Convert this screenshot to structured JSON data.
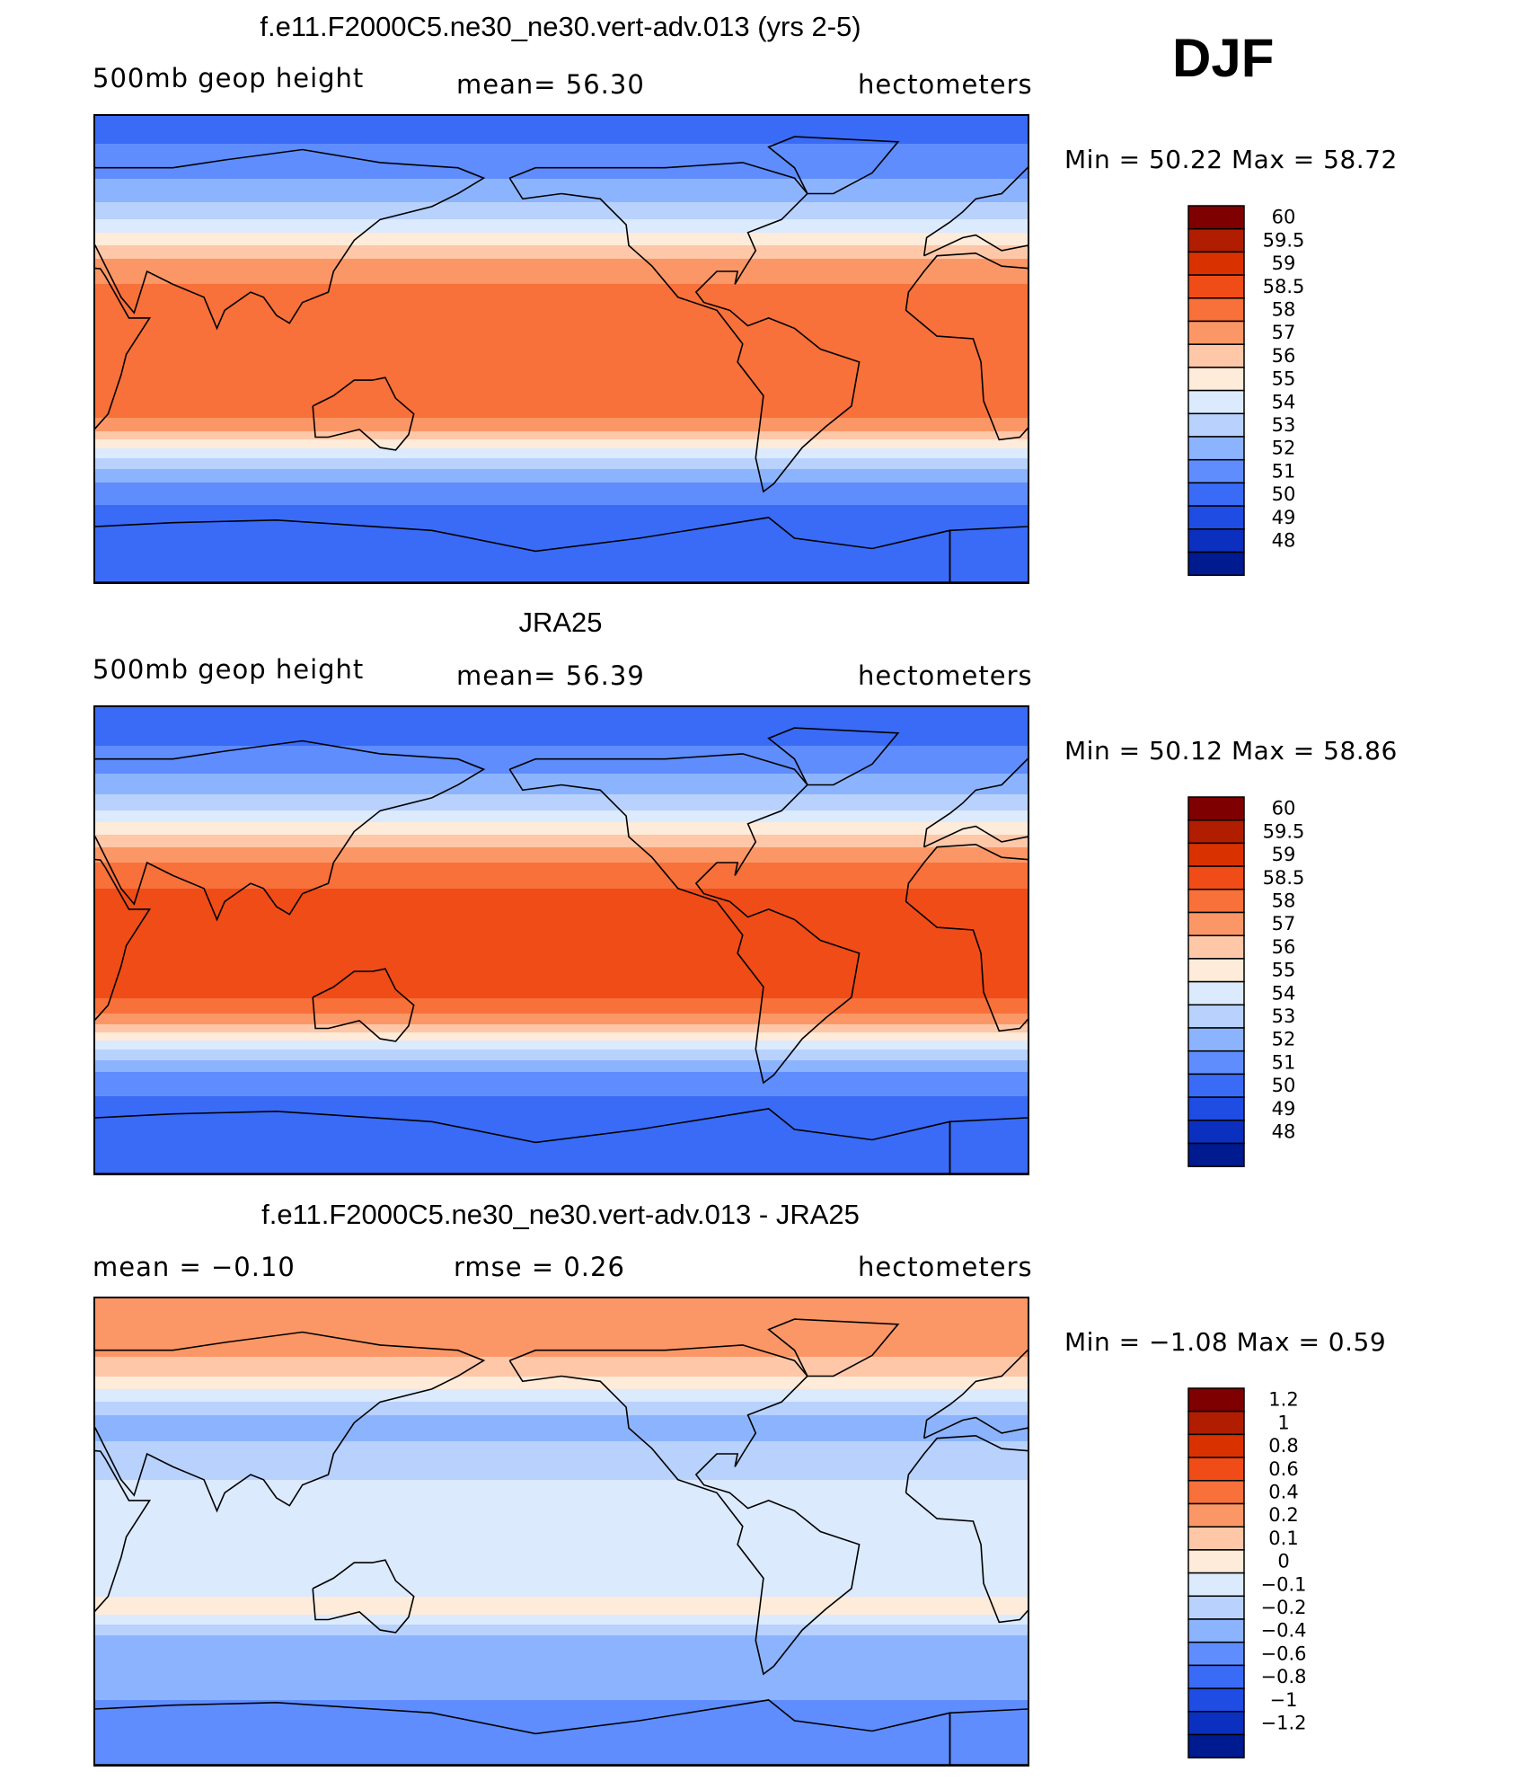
{
  "season": "DJF",
  "panels": [
    {
      "id": "model",
      "title": "f.e11.F2000C5.ne30_ne30.vert-adv.013 (yrs 2-5)",
      "left_label": "500mb geop height",
      "center_label": "mean=   56.30",
      "right_label": "hectometers",
      "minmax": "Min =    50.22  Max =    58.72",
      "colorbar_labels": [
        "60",
        "59.5",
        "59",
        "58.5",
        "58",
        "57",
        "56",
        "55",
        "54",
        "53",
        "52",
        "51",
        "50",
        "49",
        "48"
      ]
    },
    {
      "id": "obs",
      "title": "JRA25",
      "left_label": "500mb geop height",
      "center_label": "mean=   56.39",
      "right_label": "hectometers",
      "minmax": "Min =    50.12  Max =    58.86",
      "colorbar_labels": [
        "60",
        "59.5",
        "59",
        "58.5",
        "58",
        "57",
        "56",
        "55",
        "54",
        "53",
        "52",
        "51",
        "50",
        "49",
        "48"
      ]
    },
    {
      "id": "diff",
      "title": "f.e11.F2000C5.ne30_ne30.vert-adv.013 - JRA25",
      "left_label": "mean =    −0.10",
      "center_label": "rmse =    0.26",
      "right_label": "hectometers",
      "minmax": "Min =    −1.08  Max =     0.59",
      "colorbar_labels": [
        "1.2",
        "1",
        "0.8",
        "0.6",
        "0.4",
        "0.2",
        "0.1",
        "0",
        "−0.1",
        "−0.2",
        "−0.4",
        "−0.6",
        "−0.8",
        "−1",
        "−1.2"
      ]
    }
  ],
  "colorbar_colors": [
    "#7f0000",
    "#b01d00",
    "#d93200",
    "#f04c17",
    "#f8703a",
    "#fb9766",
    "#fdc7a8",
    "#feebd9",
    "#dceafd",
    "#b8d2fd",
    "#8cb4fe",
    "#5f8dfe",
    "#3a6bf6",
    "#1f4ce3",
    "#0b2fbf",
    "#001a8f"
  ],
  "chart_data": [
    {
      "type": "heatmap",
      "title": "f.e11.F2000C5.ne30_ne30.vert-adv.013 (yrs 2-5)",
      "variable": "500mb geop height",
      "units": "hectometers",
      "mean": 56.3,
      "min": 50.22,
      "max": 58.72,
      "levels": [
        48,
        49,
        50,
        51,
        52,
        53,
        54,
        55,
        56,
        57,
        58,
        58.5,
        59,
        59.5,
        60
      ],
      "zonal_profile": {
        "lat": [
          90,
          75,
          60,
          50,
          45,
          40,
          35,
          30,
          20,
          10,
          0,
          -10,
          -20,
          -25,
          -30,
          -35,
          -40,
          -45,
          -50,
          -60,
          -70,
          -80,
          -90
        ],
        "value": [
          50.5,
          51.2,
          52.5,
          54.0,
          55.0,
          56.0,
          57.0,
          57.8,
          58.2,
          58.3,
          58.2,
          58.3,
          58.4,
          58.2,
          57.6,
          56.0,
          54.5,
          53.3,
          52.2,
          51.0,
          50.6,
          50.4,
          50.3
        ]
      }
    },
    {
      "type": "heatmap",
      "title": "JRA25",
      "variable": "500mb geop height",
      "units": "hectometers",
      "mean": 56.39,
      "min": 50.12,
      "max": 58.86,
      "levels": [
        48,
        49,
        50,
        51,
        52,
        53,
        54,
        55,
        56,
        57,
        58,
        58.5,
        59,
        59.5,
        60
      ],
      "zonal_profile": {
        "lat": [
          90,
          75,
          60,
          50,
          45,
          40,
          35,
          30,
          20,
          10,
          0,
          -10,
          -20,
          -25,
          -30,
          -35,
          -40,
          -45,
          -50,
          -60,
          -70,
          -80,
          -90
        ],
        "value": [
          50.4,
          51.0,
          52.4,
          54.0,
          55.1,
          56.2,
          57.2,
          58.0,
          58.5,
          58.6,
          58.6,
          58.7,
          58.6,
          58.4,
          57.8,
          56.2,
          54.6,
          53.3,
          52.1,
          51.0,
          50.7,
          50.3,
          50.2
        ]
      }
    },
    {
      "type": "heatmap",
      "title": "f.e11.F2000C5.ne30_ne30.vert-adv.013 - JRA25",
      "units": "hectometers",
      "mean": -0.1,
      "rmse": 0.26,
      "min": -1.08,
      "max": 0.59,
      "levels": [
        -1.2,
        -1,
        -0.8,
        -0.6,
        -0.4,
        -0.2,
        -0.1,
        0,
        0.1,
        0.2,
        0.4,
        0.6,
        0.8,
        1,
        1.2
      ],
      "zonal_profile": {
        "lat": [
          90,
          75,
          60,
          50,
          45,
          40,
          35,
          30,
          20,
          10,
          0,
          -10,
          -20,
          -30,
          -40,
          -50,
          -60,
          -70,
          -80,
          -90
        ],
        "value": [
          0.2,
          0.3,
          0.1,
          -0.1,
          -0.2,
          -0.25,
          -0.2,
          -0.15,
          -0.1,
          -0.1,
          -0.05,
          -0.05,
          -0.05,
          0.05,
          -0.2,
          -0.3,
          -0.35,
          -0.45,
          -0.55,
          -0.5
        ]
      }
    }
  ]
}
